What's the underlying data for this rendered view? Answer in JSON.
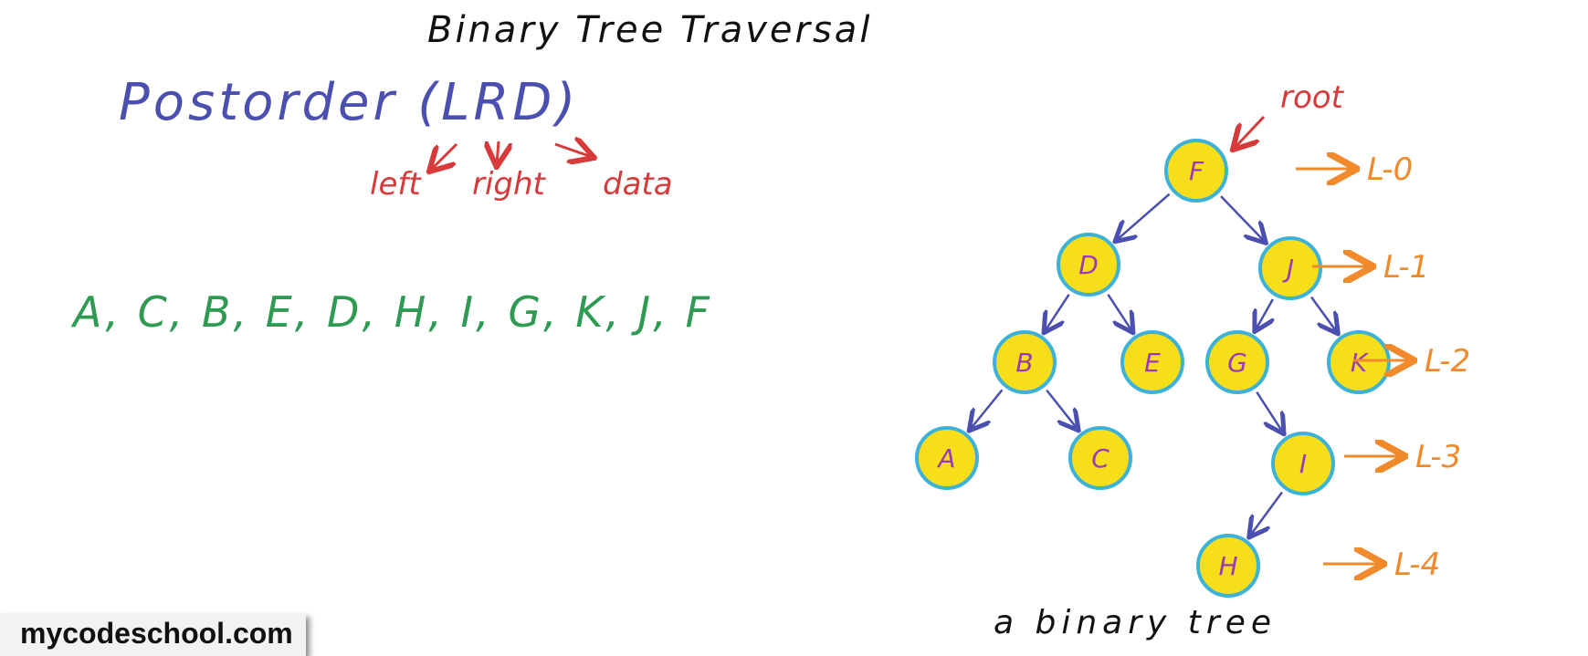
{
  "title": "Binary Tree Traversal",
  "heading": {
    "word": "Postorder",
    "notation": "(LRD)",
    "letters": [
      "L",
      "R",
      "D"
    ]
  },
  "expansion": {
    "left": "left",
    "right": "right",
    "data": "data"
  },
  "sequence": "A, C, B, E, D, H, I, G, K, J, F",
  "root_label": "root",
  "tree": {
    "nodes": [
      {
        "id": "F",
        "label": "F"
      },
      {
        "id": "D",
        "label": "D"
      },
      {
        "id": "J",
        "label": "J"
      },
      {
        "id": "B",
        "label": "B"
      },
      {
        "id": "E",
        "label": "E"
      },
      {
        "id": "G",
        "label": "G"
      },
      {
        "id": "K",
        "label": "K"
      },
      {
        "id": "A",
        "label": "A"
      },
      {
        "id": "C",
        "label": "C"
      },
      {
        "id": "I",
        "label": "I"
      },
      {
        "id": "H",
        "label": "H"
      }
    ],
    "edges": [
      [
        "F",
        "D"
      ],
      [
        "F",
        "J"
      ],
      [
        "D",
        "B"
      ],
      [
        "D",
        "E"
      ],
      [
        "J",
        "G"
      ],
      [
        "J",
        "K"
      ],
      [
        "B",
        "A"
      ],
      [
        "B",
        "C"
      ],
      [
        "G",
        "I"
      ],
      [
        "I",
        "H"
      ]
    ]
  },
  "levels": [
    "L-0",
    "L-1",
    "L-2",
    "L-3",
    "L-4"
  ],
  "caption": "a binary tree",
  "brand": "mycodeschool.com",
  "colors": {
    "node_fill": "#f7de1b",
    "node_stroke": "#3db2d9",
    "node_text": "#9b3ab5",
    "edge": "#4a4fb0",
    "level": "#f08a2a",
    "annotation": "#d63a3a",
    "sequence": "#2e9a52",
    "heading": "#4a4fb0"
  }
}
